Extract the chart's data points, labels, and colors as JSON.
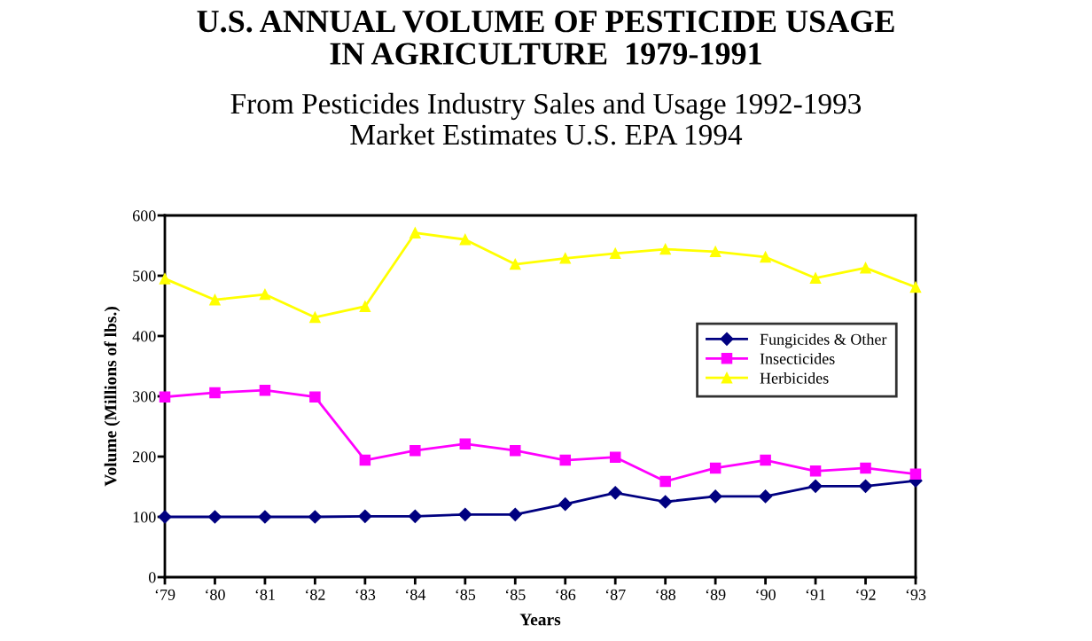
{
  "chart_data": {
    "type": "line",
    "title": "U.S. ANNUAL VOLUME OF PESTICIDE USAGE\nIN AGRICULTURE  1979-1991",
    "subtitle": "From Pesticides Industry Sales and Usage 1992-1993\nMarket Estimates U.S. EPA 1994",
    "xlabel": "Years",
    "ylabel": "Volume (Millions of lbs.)",
    "categories": [
      "‘79",
      "‘80",
      "‘81",
      "‘82",
      "‘83",
      "‘84",
      "‘85",
      "‘85",
      "‘86",
      "‘87",
      "‘88",
      "‘89",
      "‘90",
      "‘91",
      "‘92",
      "‘93"
    ],
    "series": [
      {
        "name": "Fungicides & Other",
        "color": "#000080",
        "marker": "diamond",
        "values": [
          100,
          100,
          100,
          100,
          101,
          101,
          104,
          104,
          121,
          140,
          125,
          134,
          134,
          151,
          151,
          160
        ]
      },
      {
        "name": "Insecticides",
        "color": "#ff00ff",
        "marker": "square",
        "values": [
          299,
          306,
          310,
          299,
          194,
          210,
          221,
          210,
          194,
          199,
          159,
          181,
          194,
          176,
          181,
          171
        ]
      },
      {
        "name": "Herbicides",
        "color": "#ffff00",
        "marker": "triangle",
        "values": [
          495,
          460,
          469,
          431,
          449,
          571,
          560,
          519,
          529,
          537,
          544,
          540,
          531,
          496,
          513,
          481
        ]
      }
    ],
    "ylim": [
      0,
      600
    ],
    "yticks": [
      0,
      100,
      200,
      300,
      400,
      500,
      600
    ],
    "grid": false,
    "legend": "center right",
    "line_style": "solid"
  }
}
